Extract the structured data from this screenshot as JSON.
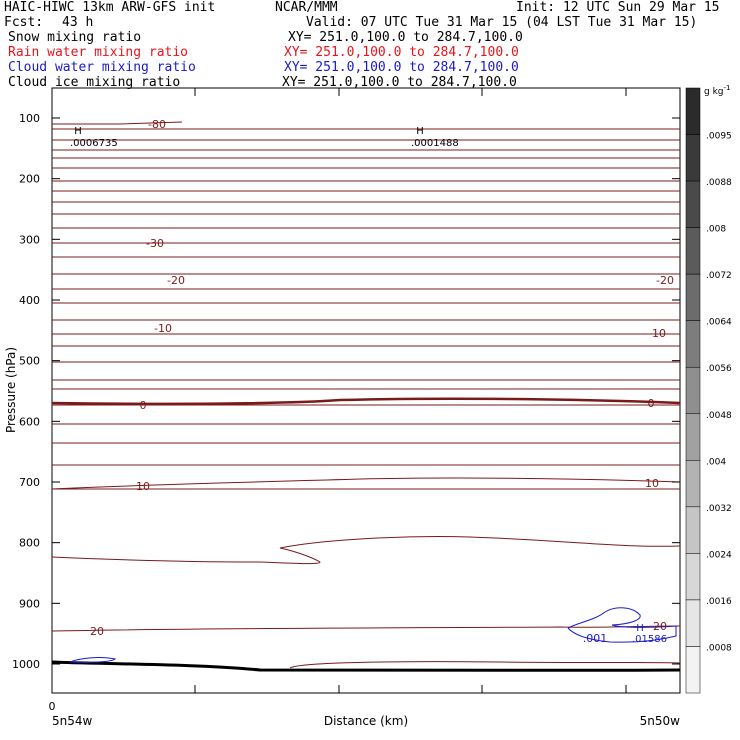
{
  "header": {
    "title": "HAIC-HIWC 13km ARW-GFS init",
    "org": "NCAR/MMM",
    "init": "Init: 12 UTC Sun 29 Mar 15",
    "fcst_label": "Fcst:",
    "fcst_value": "43 h",
    "valid": "Valid: 07 UTC Tue 31 Mar 15 (04 LST Tue 31 Mar 15)",
    "fields": [
      {
        "name": "Snow mixing ratio",
        "xy": "XY= 251.0,100.0 to 284.7,100.0",
        "color": "#000000"
      },
      {
        "name": "Rain water mixing ratio",
        "xy": "XY= 251.0,100.0 to 284.7,100.0",
        "color": "#e8141b"
      },
      {
        "name": "Cloud water mixing ratio",
        "xy": "XY= 251.0,100.0 to 284.7,100.0",
        "color": "#1a1acd"
      },
      {
        "name": "Cloud ice mixing ratio",
        "xy": "XY= 251.0,100.0 to 284.7,100.0",
        "color": "#000000"
      }
    ]
  },
  "chart_data": {
    "type": "contour",
    "ylabel": "Pressure (hPa)",
    "xlabel": "Distance (km)",
    "yticks": [
      100,
      200,
      300,
      400,
      500,
      600,
      700,
      800,
      900,
      1000
    ],
    "ylim": [
      1050,
      50
    ],
    "xtick_first": "0",
    "x_left_label": "5n54w",
    "x_right_label": "5n50w",
    "temperature_labels": [
      "-80",
      "-30",
      "-20",
      "-10",
      "0",
      "10",
      "20"
    ],
    "maxima": [
      {
        "letter": "H",
        "value": ".0006735"
      },
      {
        "letter": "H",
        "value": ".0001488"
      },
      {
        "letter": "H",
        "value": ".01586"
      }
    ],
    "cloud_contour_label": ".001",
    "colorbar": {
      "unit": "g kg",
      "unit_exp": "-1",
      "levels": [
        ".0095",
        ".0088",
        ".008",
        ".0072",
        ".0064",
        ".0056",
        ".0048",
        ".004",
        ".0032",
        ".0024",
        ".0016",
        ".0008"
      ],
      "colors": [
        "#2b2b2b",
        "#3a3a3a",
        "#4a4a4a",
        "#5b5b5b",
        "#6c6c6c",
        "#7d7d7d",
        "#8f8f8f",
        "#a1a1a1",
        "#b3b3b3",
        "#c5c5c5",
        "#d7d7d7",
        "#e6e6e6",
        "#f3f3f3"
      ]
    },
    "colors": {
      "isotherm": "#7a1b1b",
      "cloud": "#1a1acd",
      "terrain": "#000000"
    }
  }
}
